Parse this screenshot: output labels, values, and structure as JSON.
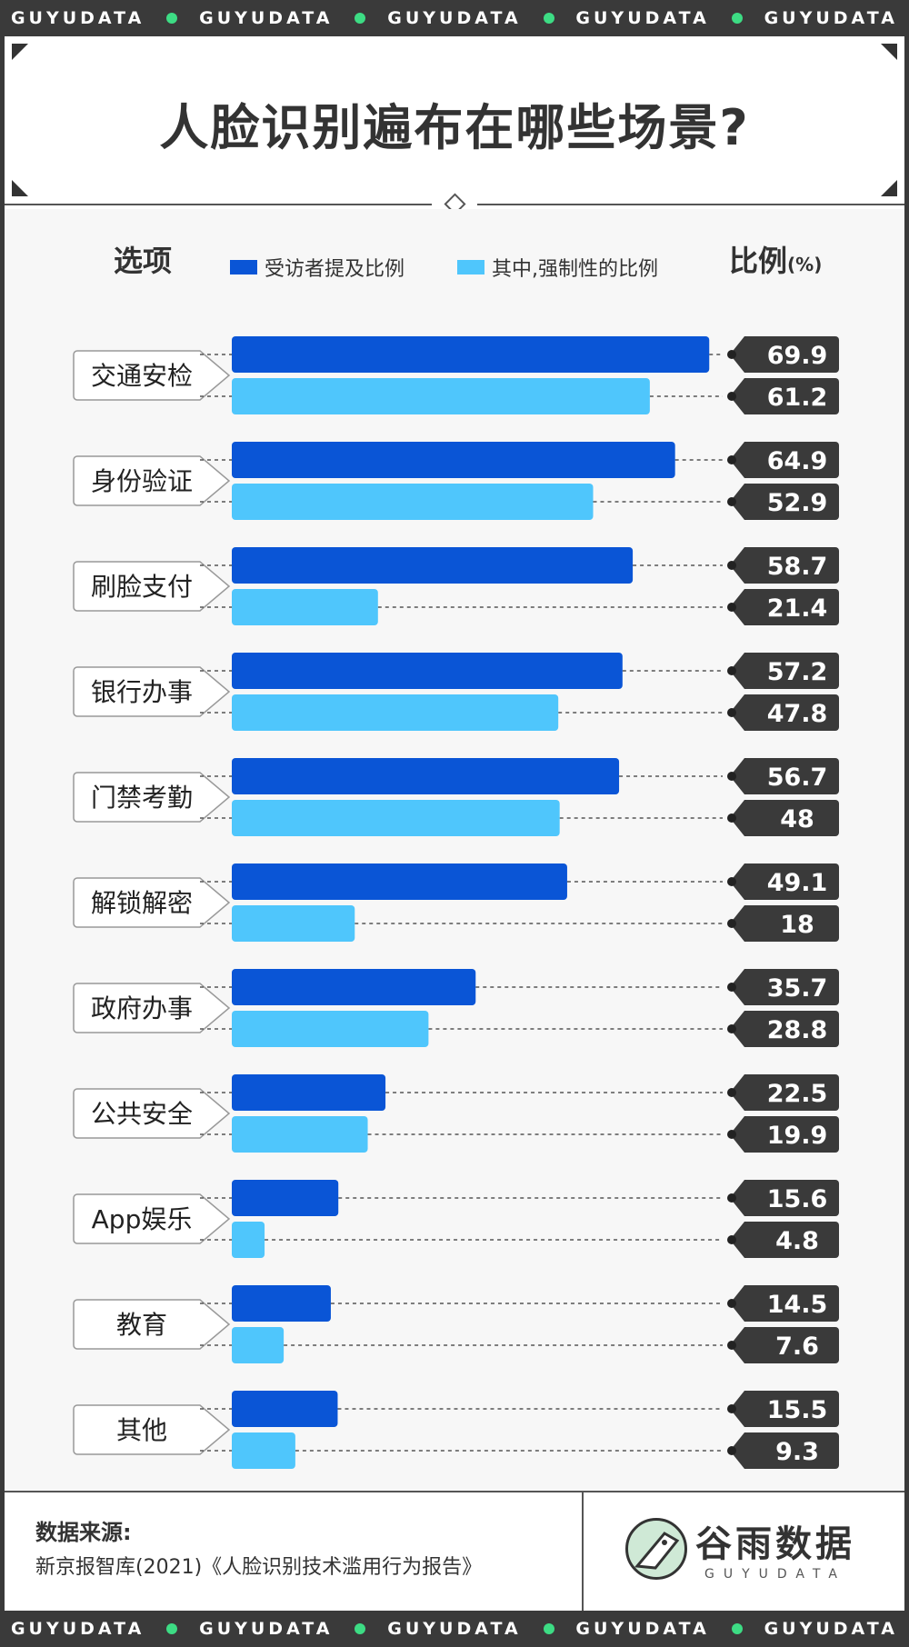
{
  "band_text": "GUYUDATA",
  "title": "人脸识别遍布在哪些场景?",
  "header": {
    "options_label": "选项",
    "ratio_label": "比例",
    "ratio_unit": "(%)"
  },
  "colors": {
    "series_primary": "#0a55d6",
    "series_secondary": "#4fc6fc",
    "value_tag": "#3a3a3a",
    "accent_dot": "#3ddc84"
  },
  "chart_data": {
    "type": "bar",
    "orientation": "horizontal",
    "categories": [
      "交通安检",
      "身份验证",
      "刷脸支付",
      "银行办事",
      "门禁考勤",
      "解锁解密",
      "政府办事",
      "公共安全",
      "App娱乐",
      "教育",
      "其他"
    ],
    "series": [
      {
        "name": "受访者提及比例",
        "values": [
          69.9,
          64.9,
          58.7,
          57.2,
          56.7,
          49.1,
          35.7,
          22.5,
          15.6,
          14.5,
          15.5
        ]
      },
      {
        "name": "其中,强制性的比例",
        "values": [
          61.2,
          52.9,
          21.4,
          47.8,
          48,
          18,
          28.8,
          19.9,
          4.8,
          7.6,
          9.3
        ]
      }
    ],
    "xlim": [
      0,
      70
    ],
    "legend_position": "top",
    "grid": false
  },
  "footer": {
    "source_label": "数据来源:",
    "source_text": "新京报智库(2021)《人脸识别技术滥用行为报告》",
    "logo_name": "谷雨数据",
    "logo_sub": "GUYUDATA"
  }
}
